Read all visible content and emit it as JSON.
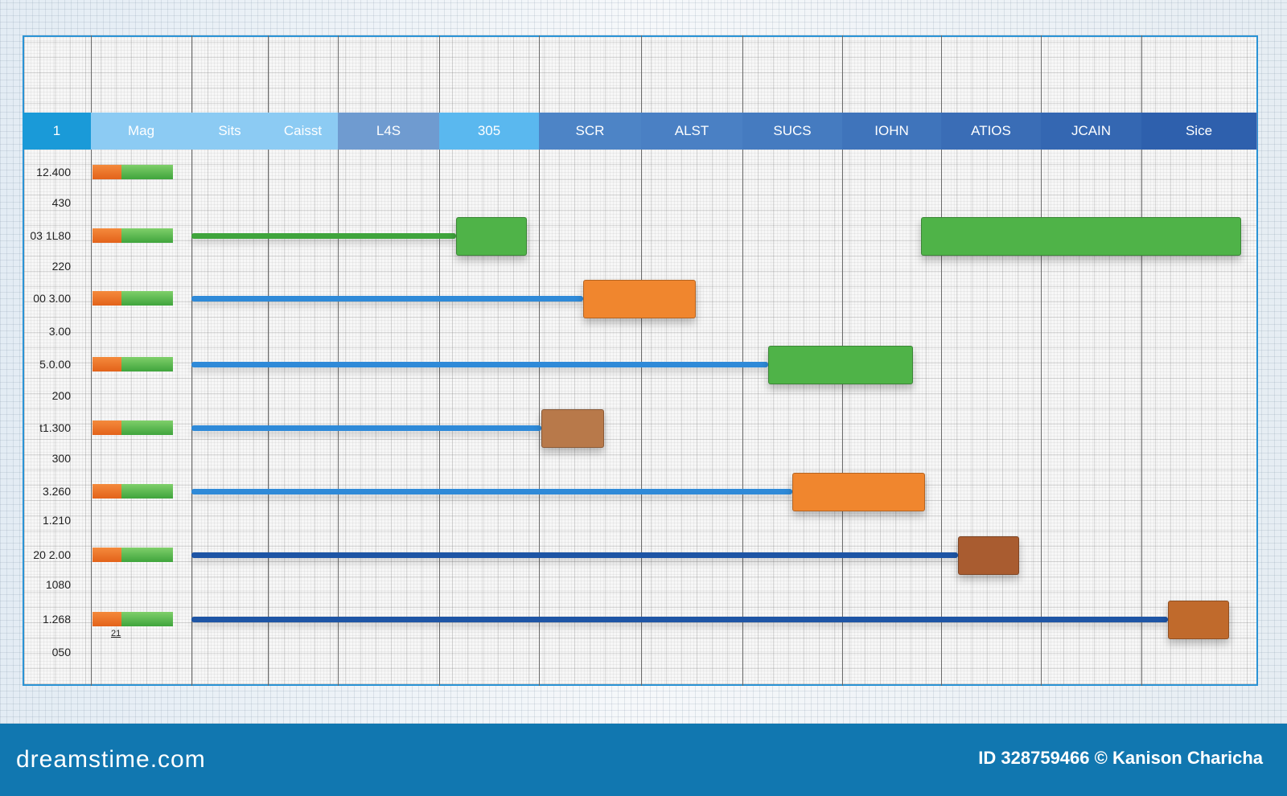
{
  "chart_data": {
    "type": "gantt",
    "columns": [
      "1",
      "Mag",
      "Sits",
      "Caisst",
      "L4S",
      "305",
      "SCR",
      "ALST",
      "SUCS",
      "IOHN",
      "ATIOS",
      "JCAIN",
      "Sice"
    ],
    "header_colors": [
      "#1a9ad8",
      "#8ccbf3",
      "#8ccbf3",
      "#8ccbf3",
      "#6f9bd0",
      "#5ab8ef",
      "#4d84c6",
      "#4a80c4",
      "#457bc0",
      "#3f74bb",
      "#3a6db6",
      "#3467b2",
      "#2e60ad"
    ],
    "row_labels": [
      "12.400",
      "430",
      "03 1L80",
      "220",
      "00 3.00",
      "3.00",
      "5.0.00",
      "200",
      "t1.300",
      "300",
      "3.260",
      "1.210",
      "20 2.00",
      "1080",
      "1.268",
      "050"
    ],
    "tasks": [
      {
        "row": "12.400",
        "bars": []
      },
      {
        "row": "03 1L80",
        "bars": [
          {
            "start": 2.0,
            "end": 5.17,
            "kind": "line",
            "color": "#3fa43c"
          },
          {
            "start": 5.17,
            "end": 5.86,
            "kind": "block",
            "color": "#4fb348"
          },
          {
            "start": 9.8,
            "end": 12.85,
            "kind": "block",
            "color": "#4fb348"
          }
        ]
      },
      {
        "row": "00 3.00",
        "bars": [
          {
            "start": 2.0,
            "end": 6.43,
            "kind": "line",
            "color": "#2f8ad8"
          },
          {
            "start": 6.43,
            "end": 7.52,
            "kind": "block",
            "color": "#f0862e"
          }
        ]
      },
      {
        "row": "5.0.00",
        "bars": [
          {
            "start": 2.0,
            "end": 8.26,
            "kind": "line",
            "color": "#2f8ad8"
          },
          {
            "start": 8.26,
            "end": 9.7,
            "kind": "block",
            "color": "#4fb348"
          }
        ]
      },
      {
        "row": "t1.300",
        "bars": [
          {
            "start": 2.0,
            "end": 6.02,
            "kind": "line",
            "color": "#2f8ad8"
          },
          {
            "start": 6.02,
            "end": 6.62,
            "kind": "block",
            "color": "#b8794a"
          }
        ]
      },
      {
        "row": "3.260",
        "bars": [
          {
            "start": 2.0,
            "end": 8.5,
            "kind": "line",
            "color": "#2f8ad8"
          },
          {
            "start": 8.5,
            "end": 9.82,
            "kind": "block",
            "color": "#f0862e"
          }
        ]
      },
      {
        "row": "20 2.00",
        "bars": [
          {
            "start": 2.0,
            "end": 10.17,
            "kind": "line",
            "color": "#1e55a5"
          },
          {
            "start": 10.17,
            "end": 10.77,
            "kind": "block",
            "color": "#a95c30"
          }
        ]
      },
      {
        "row": "1.268",
        "bars": [
          {
            "start": 2.0,
            "end": 12.23,
            "kind": "line",
            "color": "#1e55a5"
          },
          {
            "start": 12.23,
            "end": 12.75,
            "kind": "block",
            "color": "#c06a2c"
          }
        ]
      }
    ],
    "annotation": "21"
  },
  "footer": {
    "logo": "dreamstime.com",
    "credit": "ID 328759466 © Kanison Charicha",
    "background": "#1177b0"
  }
}
